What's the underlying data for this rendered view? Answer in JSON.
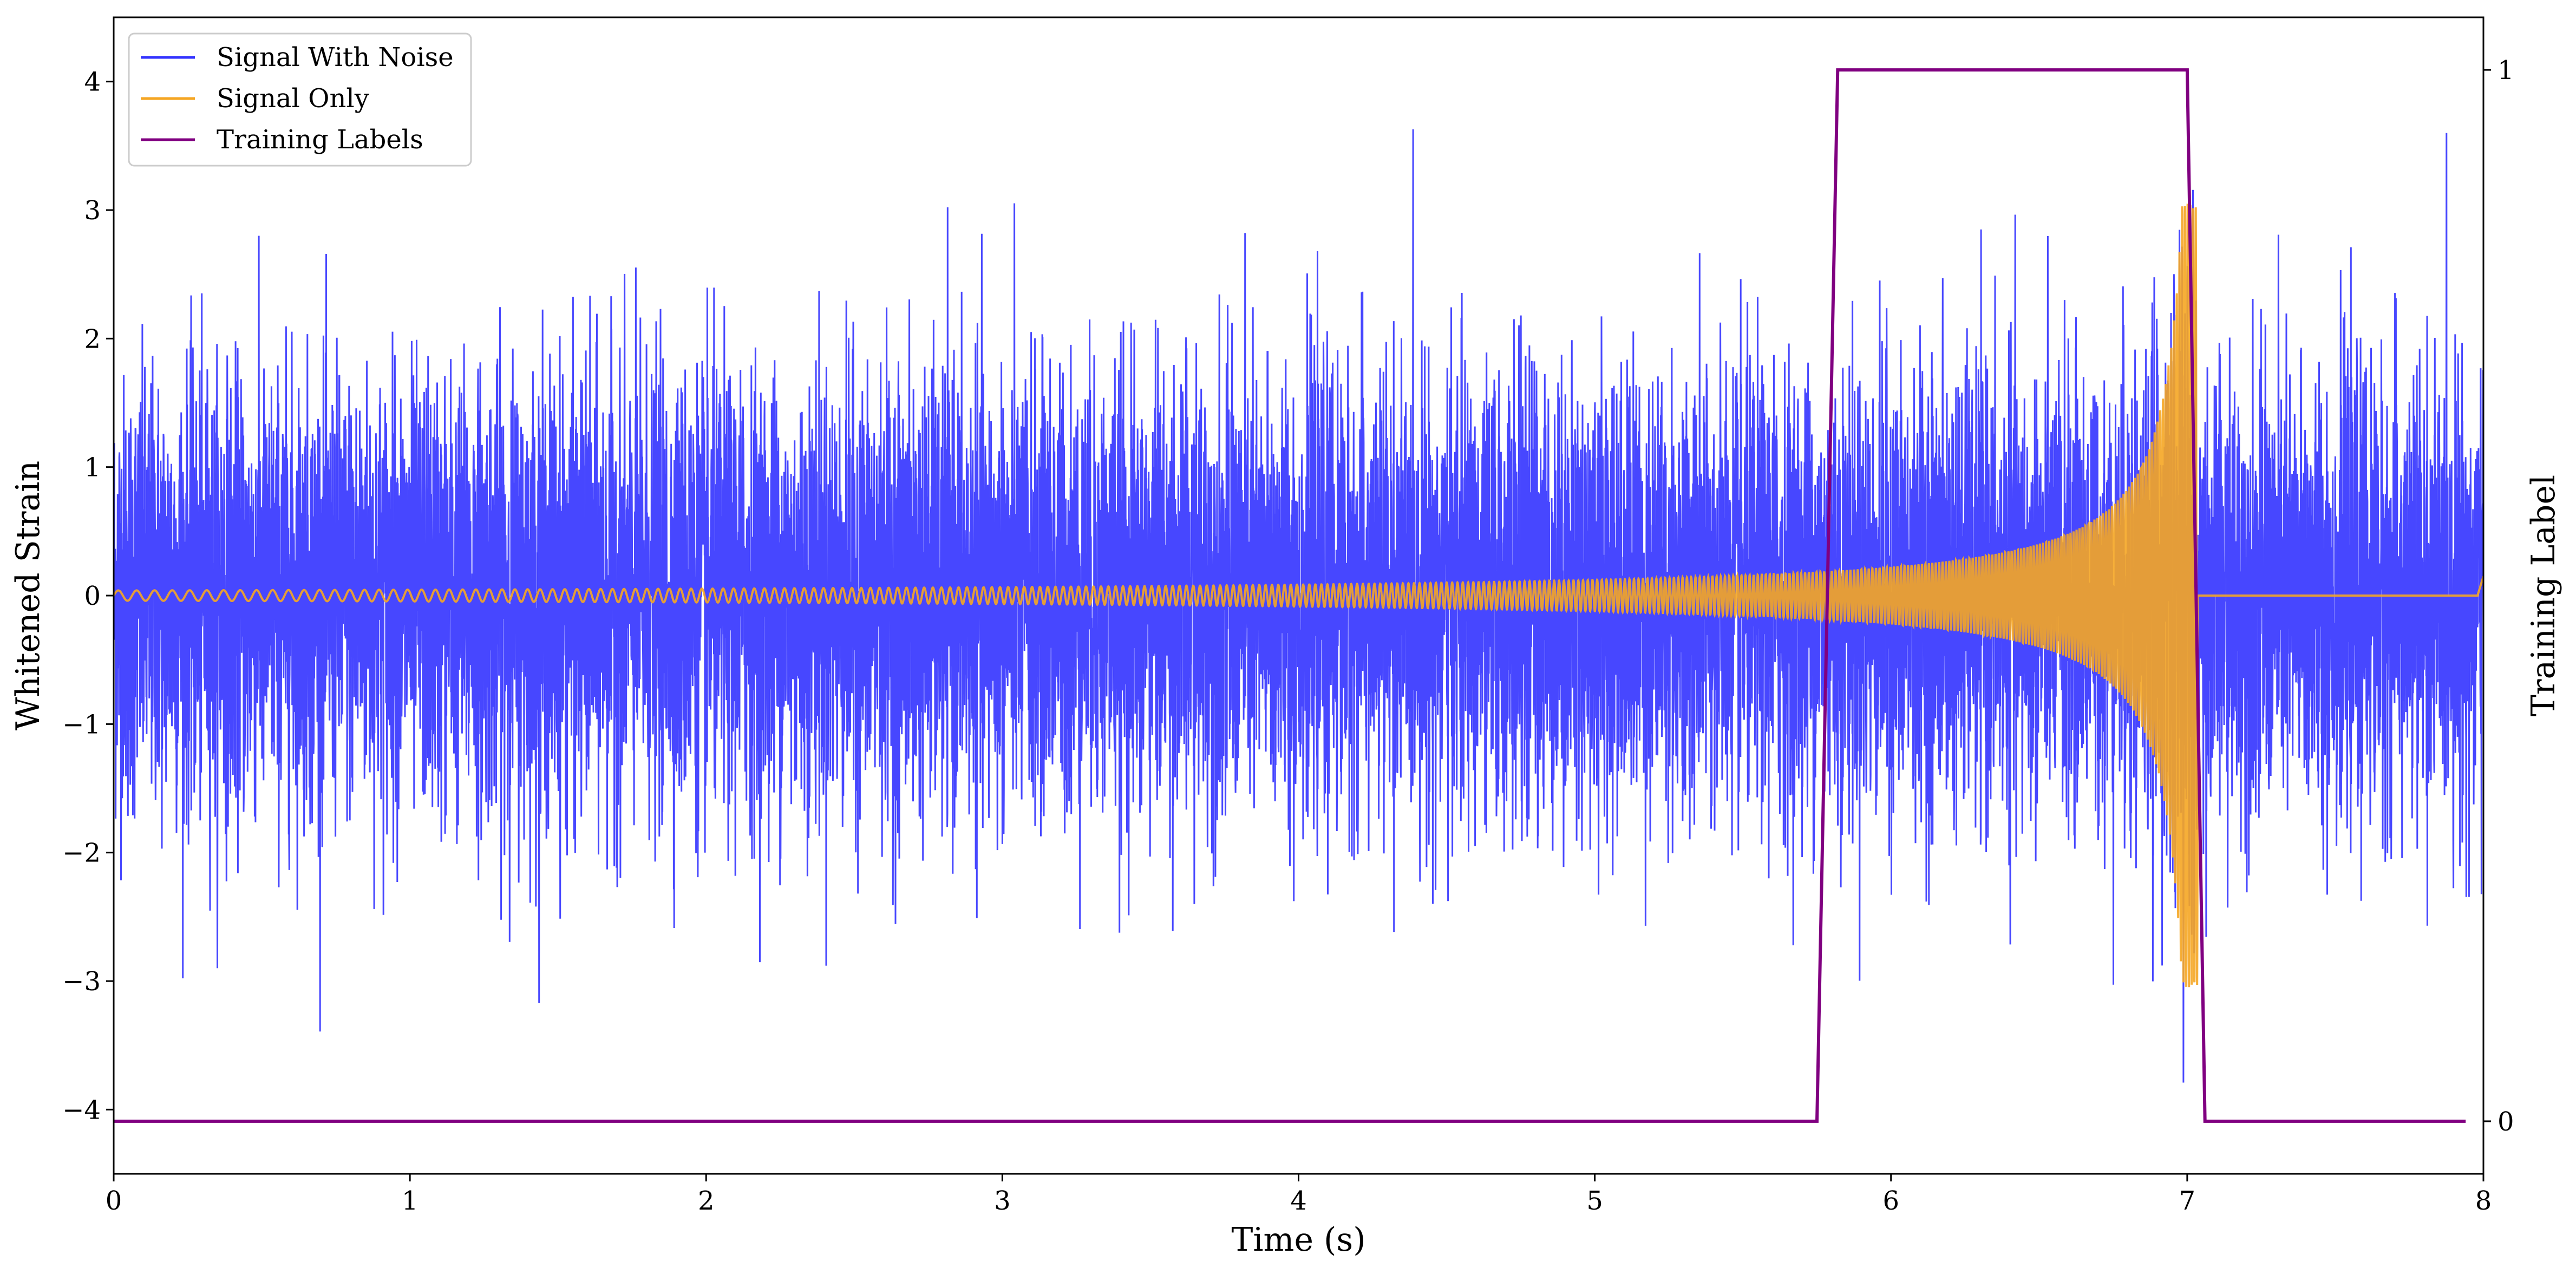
{
  "chart_data": {
    "type": "line",
    "xlabel": "Time (s)",
    "ylabel": "Whitened Strain",
    "y2label": "Training Label",
    "xlim": [
      0,
      8
    ],
    "ylim": [
      -4.5,
      4.5
    ],
    "y2lim": [
      -0.05,
      1.05
    ],
    "xticks": [
      "0",
      "1",
      "2",
      "3",
      "4",
      "5",
      "6",
      "7",
      "8"
    ],
    "yticks": [
      "−4",
      "−3",
      "−2",
      "−1",
      "0",
      "1",
      "2",
      "3",
      "4"
    ],
    "y2ticks": [
      "0",
      "1"
    ],
    "grid": false,
    "legend_position": "top-left",
    "series": [
      {
        "name": "Signal With Noise",
        "color": "#3333ff",
        "description_values": {
          "noise_std": 0.85,
          "peak_max": 3.6,
          "peak_min": -3.5
        }
      },
      {
        "name": "Signal Only",
        "color": "#f5a623",
        "chirp": {
          "t_start": 0.0,
          "t_merger": 7.02,
          "t_end": 8.0,
          "amp_start": 0.04,
          "amp_peak": 3.05,
          "freq_start_hz": 16,
          "freq_end_hz": 110
        }
      },
      {
        "name": "Training Labels",
        "color": "#800080",
        "axis": "right",
        "x": [
          0.0,
          5.75,
          5.82,
          7.0,
          7.06,
          7.94
        ],
        "y": [
          0,
          0,
          1,
          1,
          0,
          0
        ]
      }
    ]
  }
}
